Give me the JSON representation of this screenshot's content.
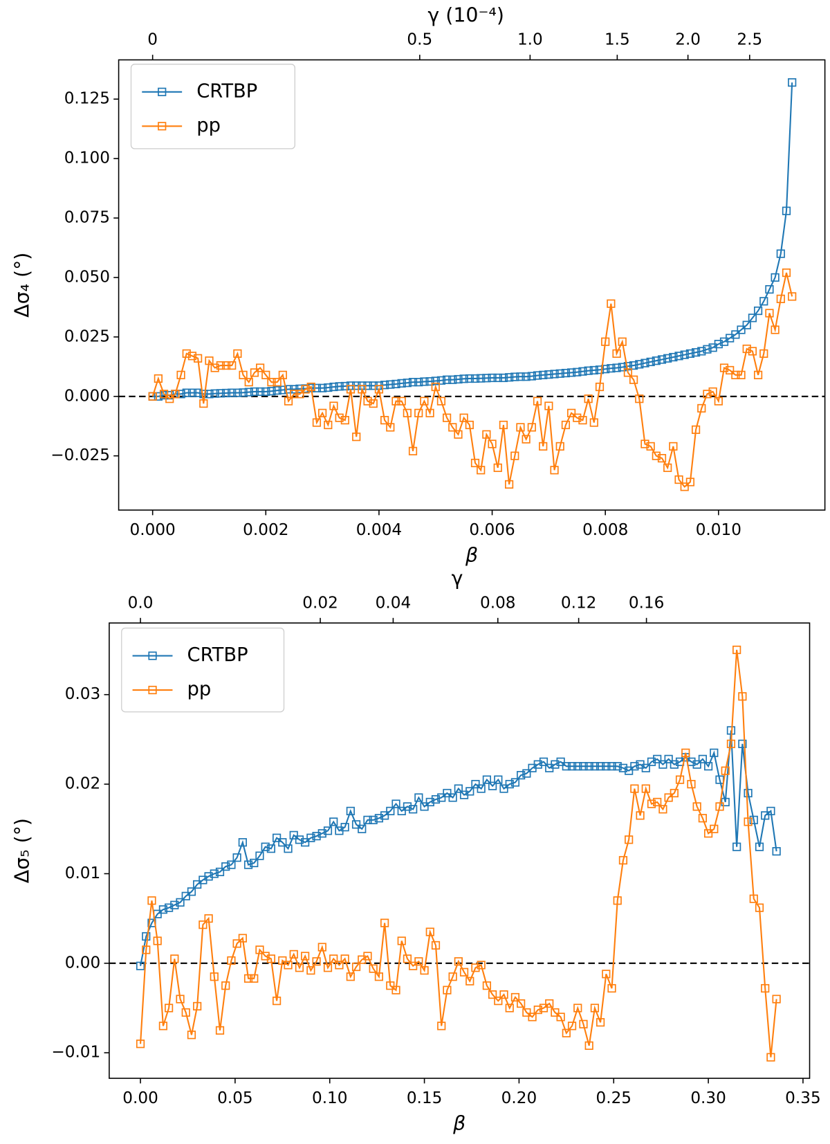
{
  "chart_data": [
    {
      "type": "line",
      "xlabel": "β",
      "ylabel": "Δσ₄ (°)",
      "x2label": "γ (10⁻⁴)",
      "xlim": [
        -0.0006,
        0.01188
      ],
      "ylim": [
        -0.0478,
        0.1415
      ],
      "xticks": [
        {
          "value": 0,
          "label": "0.000"
        },
        {
          "value": 0.002,
          "label": "0.002"
        },
        {
          "value": 0.004,
          "label": "0.004"
        },
        {
          "value": 0.006,
          "label": "0.006"
        },
        {
          "value": 0.008,
          "label": "0.008"
        },
        {
          "value": 0.01,
          "label": "0.010"
        }
      ],
      "yticks": [
        {
          "value": -0.025,
          "label": "−0.025"
        },
        {
          "value": 0,
          "label": "0.000"
        },
        {
          "value": 0.025,
          "label": "0.025"
        },
        {
          "value": 0.05,
          "label": "0.050"
        },
        {
          "value": 0.075,
          "label": "0.075"
        },
        {
          "value": 0.1,
          "label": "0.100"
        },
        {
          "value": 0.125,
          "label": "0.125"
        }
      ],
      "x2ticks": [
        0,
        0.5,
        {
          "value": 1.0,
          "label": "1.0"
        },
        1.5,
        {
          "value": 2.0,
          "label": "2.0"
        },
        2.5
      ],
      "x2tick_positions": [
        0,
        0.00472,
        0.00667,
        0.00821,
        0.00946,
        0.01055
      ],
      "hline": 0,
      "legend": "upper left",
      "x": [
        0,
        0.0001,
        0.0002,
        0.0003,
        0.0004,
        0.0005,
        0.0006,
        0.0007,
        0.0008,
        0.0009,
        0.001,
        0.0011,
        0.0012,
        0.0013,
        0.0014,
        0.0015,
        0.0016,
        0.0017,
        0.0018,
        0.0019,
        0.002,
        0.0021,
        0.0022,
        0.0023,
        0.0024,
        0.0025,
        0.0026,
        0.0027,
        0.0028,
        0.0029,
        0.003,
        0.0031,
        0.0032,
        0.0033,
        0.0034,
        0.0035,
        0.0036,
        0.0037,
        0.0038,
        0.0039,
        0.004,
        0.0041,
        0.0042,
        0.0043,
        0.0044,
        0.0045,
        0.0046,
        0.0047,
        0.0048,
        0.0049,
        0.005,
        0.0051,
        0.0052,
        0.0053,
        0.0054,
        0.0055,
        0.0056,
        0.0057,
        0.0058,
        0.0059,
        0.006,
        0.0061,
        0.0062,
        0.0063,
        0.0064,
        0.0065,
        0.0066,
        0.0067,
        0.0068,
        0.0069,
        0.007,
        0.0071,
        0.0072,
        0.0073,
        0.0074,
        0.0075,
        0.0076,
        0.0077,
        0.0078,
        0.0079,
        0.008,
        0.0081,
        0.0082,
        0.0083,
        0.0084,
        0.0085,
        0.0086,
        0.0087,
        0.0088,
        0.0089,
        0.009,
        0.0091,
        0.0092,
        0.0093,
        0.0094,
        0.0095,
        0.0096,
        0.0097,
        0.0098,
        0.0099,
        0.01,
        0.0101,
        0.0102,
        0.0103,
        0.0104,
        0.0105,
        0.0106,
        0.0107,
        0.0108,
        0.0109,
        0.011,
        0.0111,
        0.0112,
        0.0113
      ],
      "series": [
        {
          "name": "CRTBP",
          "color": "#1f77b4",
          "values": [
            0,
            0,
            0.0005,
            0.0005,
            0.001,
            0.001,
            0.0015,
            0.0015,
            0.0015,
            0.001,
            0.001,
            0.0012,
            0.0013,
            0.0014,
            0.0015,
            0.0015,
            0.0016,
            0.0018,
            0.002,
            0.002,
            0.002,
            0.0022,
            0.0025,
            0.0027,
            0.003,
            0.003,
            0.0032,
            0.0033,
            0.0035,
            0.0035,
            0.0035,
            0.0037,
            0.004,
            0.0042,
            0.0043,
            0.0045,
            0.0045,
            0.0045,
            0.0045,
            0.0045,
            0.0045,
            0.0048,
            0.005,
            0.0052,
            0.0055,
            0.0057,
            0.006,
            0.006,
            0.0062,
            0.0063,
            0.0065,
            0.0067,
            0.007,
            0.007,
            0.0072,
            0.0074,
            0.0075,
            0.0075,
            0.0076,
            0.0077,
            0.0078,
            0.0078,
            0.0078,
            0.008,
            0.0082,
            0.0083,
            0.0083,
            0.0085,
            0.0088,
            0.009,
            0.0092,
            0.0094,
            0.0096,
            0.0098,
            0.01,
            0.0102,
            0.0105,
            0.0108,
            0.011,
            0.0112,
            0.0115,
            0.0118,
            0.012,
            0.0123,
            0.0127,
            0.013,
            0.0135,
            0.014,
            0.0145,
            0.015,
            0.0155,
            0.016,
            0.0165,
            0.017,
            0.0175,
            0.018,
            0.0185,
            0.019,
            0.0198,
            0.0205,
            0.022,
            0.023,
            0.0245,
            0.026,
            0.028,
            0.03,
            0.033,
            0.036,
            0.04,
            0.045,
            0.05,
            0.06,
            0.078,
            0.132
          ]
        },
        {
          "name": "pp",
          "color": "#ff7f0e",
          "values": [
            0,
            0.0075,
            0.001,
            -0.001,
            0.001,
            0.009,
            0.018,
            0.017,
            0.016,
            -0.003,
            0.015,
            0.012,
            0.013,
            0.013,
            0.013,
            0.018,
            0.009,
            0.006,
            0.01,
            0.012,
            0.009,
            0.006,
            0.006,
            0.009,
            -0.002,
            0.001,
            0.001,
            0.003,
            0.004,
            -0.011,
            -0.007,
            -0.012,
            -0.004,
            -0.009,
            -0.01,
            0.003,
            -0.017,
            0.003,
            -0.002,
            -0.003,
            0.003,
            -0.01,
            -0.013,
            -0.002,
            -0.002,
            -0.007,
            -0.023,
            -0.007,
            -0.002,
            -0.007,
            0.004,
            -0.002,
            -0.009,
            -0.013,
            -0.016,
            -0.009,
            -0.012,
            -0.028,
            -0.031,
            -0.016,
            -0.02,
            -0.03,
            -0.012,
            -0.037,
            -0.025,
            -0.013,
            -0.018,
            -0.013,
            -0.002,
            -0.021,
            -0.004,
            -0.031,
            -0.021,
            -0.012,
            -0.007,
            -0.009,
            -0.01,
            -0.001,
            -0.011,
            0.004,
            0.023,
            0.039,
            0.018,
            0.023,
            0.01,
            0.007,
            -0.001,
            -0.02,
            -0.021,
            -0.025,
            -0.026,
            -0.03,
            -0.021,
            -0.035,
            -0.038,
            -0.036,
            -0.014,
            -0.005,
            0.001,
            0.002,
            -0.002,
            0.012,
            0.011,
            0.009,
            0.009,
            0.02,
            0.019,
            0.009,
            0.018,
            0.035,
            0.028,
            0.041,
            0.052,
            0.042
          ]
        }
      ]
    },
    {
      "type": "line",
      "xlabel": "β",
      "ylabel": "Δσ₅ (°)",
      "x2label": "γ",
      "xlim": [
        -0.0165,
        0.3535
      ],
      "ylim": [
        -0.01285,
        0.038
      ],
      "xticks": [
        {
          "value": 0,
          "label": "0.00"
        },
        {
          "value": 0.05,
          "label": "0.05"
        },
        {
          "value": 0.1,
          "label": "0.10"
        },
        {
          "value": 0.15,
          "label": "0.15"
        },
        {
          "value": 0.2,
          "label": "0.20"
        },
        {
          "value": 0.25,
          "label": "0.25"
        },
        {
          "value": 0.3,
          "label": "0.30"
        },
        {
          "value": 0.35,
          "label": "0.35"
        }
      ],
      "yticks": [
        {
          "value": -0.01,
          "label": "−0.01"
        },
        {
          "value": 0,
          "label": "0.00"
        },
        {
          "value": 0.01,
          "label": "0.01"
        },
        {
          "value": 0.02,
          "label": "0.02"
        },
        {
          "value": 0.03,
          "label": "0.03"
        }
      ],
      "x2ticks": [
        {
          "value": 0,
          "label": "0.0"
        },
        0.02,
        0.04,
        0.08,
        {
          "value": 0.12,
          "label": "0.12"
        },
        0.16
      ],
      "x2tick_positions": [
        0,
        0.095,
        0.1335,
        0.1888,
        0.2315,
        0.2673
      ],
      "hline": 0,
      "legend": "upper left",
      "x": [
        0,
        0.003,
        0.006,
        0.009,
        0.012,
        0.015,
        0.018,
        0.021,
        0.024,
        0.027,
        0.03,
        0.033,
        0.036,
        0.039,
        0.042,
        0.045,
        0.048,
        0.051,
        0.054,
        0.057,
        0.06,
        0.063,
        0.066,
        0.069,
        0.072,
        0.075,
        0.078,
        0.081,
        0.084,
        0.087,
        0.09,
        0.093,
        0.096,
        0.099,
        0.102,
        0.105,
        0.108,
        0.111,
        0.114,
        0.117,
        0.12,
        0.123,
        0.126,
        0.129,
        0.132,
        0.135,
        0.138,
        0.141,
        0.144,
        0.147,
        0.15,
        0.153,
        0.156,
        0.159,
        0.162,
        0.165,
        0.168,
        0.171,
        0.174,
        0.177,
        0.18,
        0.183,
        0.186,
        0.189,
        0.192,
        0.195,
        0.198,
        0.201,
        0.204,
        0.207,
        0.21,
        0.213,
        0.216,
        0.219,
        0.222,
        0.225,
        0.228,
        0.231,
        0.234,
        0.237,
        0.24,
        0.243,
        0.246,
        0.249,
        0.252,
        0.255,
        0.258,
        0.261,
        0.264,
        0.267,
        0.27,
        0.273,
        0.276,
        0.279,
        0.282,
        0.285,
        0.288,
        0.291,
        0.294,
        0.297,
        0.3,
        0.303,
        0.306,
        0.309,
        0.312,
        0.315,
        0.318,
        0.321,
        0.324,
        0.327,
        0.33,
        0.333,
        0.336
      ],
      "series": [
        {
          "name": "CRTBP",
          "color": "#1f77b4",
          "values": [
            -0.0003,
            0.003,
            0.0045,
            0.0055,
            0.006,
            0.0062,
            0.0065,
            0.0068,
            0.0075,
            0.008,
            0.0088,
            0.0093,
            0.0097,
            0.01,
            0.0102,
            0.0108,
            0.011,
            0.0118,
            0.0135,
            0.011,
            0.0112,
            0.012,
            0.013,
            0.0128,
            0.014,
            0.0135,
            0.0128,
            0.0143,
            0.0138,
            0.0135,
            0.014,
            0.0142,
            0.0145,
            0.0148,
            0.0158,
            0.0148,
            0.0152,
            0.017,
            0.0155,
            0.015,
            0.016,
            0.016,
            0.0162,
            0.0165,
            0.017,
            0.0178,
            0.017,
            0.0175,
            0.0172,
            0.0185,
            0.0175,
            0.018,
            0.0183,
            0.0185,
            0.019,
            0.0185,
            0.0195,
            0.0188,
            0.0192,
            0.02,
            0.0195,
            0.0205,
            0.0198,
            0.0205,
            0.0195,
            0.02,
            0.0202,
            0.021,
            0.0212,
            0.0218,
            0.0222,
            0.0225,
            0.0218,
            0.0222,
            0.0225,
            0.022,
            0.022,
            0.022,
            0.022,
            0.022,
            0.022,
            0.022,
            0.022,
            0.022,
            0.022,
            0.0218,
            0.0215,
            0.022,
            0.0222,
            0.0218,
            0.0225,
            0.0228,
            0.0222,
            0.0228,
            0.0222,
            0.0225,
            0.023,
            0.0225,
            0.0222,
            0.0228,
            0.022,
            0.0235,
            0.0205,
            0.018,
            0.026,
            0.013,
            0.0245,
            0.019,
            0.016,
            0.013,
            0.0165,
            0.017,
            0.0125
          ]
        },
        {
          "name": "pp",
          "color": "#ff7f0e",
          "values": [
            -0.009,
            0.0015,
            0.007,
            0.0025,
            -0.007,
            -0.005,
            0.0005,
            -0.004,
            -0.0055,
            -0.008,
            -0.0048,
            0.0043,
            0.005,
            -0.0015,
            -0.0075,
            -0.0025,
            0.0003,
            0.0022,
            0.0028,
            -0.0017,
            -0.0017,
            0.0015,
            0.0008,
            0.0005,
            -0.0042,
            0.0003,
            -0.0002,
            0.001,
            -0.0005,
            0.0008,
            -0.0008,
            0.0002,
            0.0018,
            -0.0005,
            0.0005,
            -0.0002,
            0.0005,
            -0.0015,
            -0.0004,
            0.0004,
            0.0008,
            -0.0006,
            -0.0015,
            0.0045,
            -0.0025,
            -0.003,
            0.0025,
            0.0005,
            -0.0003,
            0.0002,
            -0.0008,
            0.0035,
            0.002,
            -0.007,
            -0.003,
            -0.0015,
            0.0002,
            -0.001,
            -0.002,
            -0.0005,
            -0.0002,
            -0.0025,
            -0.0035,
            -0.0042,
            -0.0035,
            -0.005,
            -0.0038,
            -0.0045,
            -0.0055,
            -0.006,
            -0.0052,
            -0.005,
            -0.0045,
            -0.0055,
            -0.006,
            -0.0078,
            -0.007,
            -0.005,
            -0.0068,
            -0.0092,
            -0.005,
            -0.0066,
            -0.0012,
            -0.0028,
            0.007,
            0.0115,
            0.0138,
            0.0195,
            0.0165,
            0.0195,
            0.0178,
            0.018,
            0.0172,
            0.0185,
            0.019,
            0.0205,
            0.0235,
            0.02,
            0.0175,
            0.0162,
            0.0145,
            0.015,
            0.0175,
            0.0215,
            0.0245,
            0.035,
            0.0298,
            0.0158,
            0.0072,
            0.0062,
            -0.0028,
            -0.0105,
            -0.004
          ]
        }
      ]
    }
  ]
}
